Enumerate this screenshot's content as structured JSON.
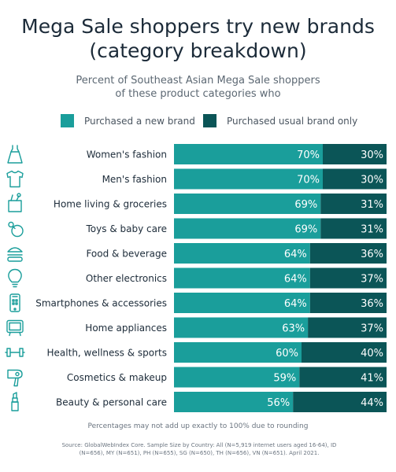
{
  "title_line1": "Mega Sale shoppers try new brands",
  "title_line2": "(category breakdown)",
  "subtitle_line1": "Percent of Southeast Asian Mega Sale shoppers",
  "subtitle_line2": "of these product categories who",
  "colors": {
    "new_brand": "#1a9e9b",
    "usual_brand": "#0b5557",
    "text": "#1c2b39",
    "icon": "#1a9e9b"
  },
  "chart_data": {
    "type": "bar",
    "orientation": "horizontal",
    "stacked": true,
    "categories": [
      "Women's fashion",
      "Men's fashion",
      "Home living & groceries",
      "Toys & baby care",
      "Food & beverage",
      "Other electronics",
      "Smartphones & accessories",
      "Home appliances",
      "Health, wellness & sports",
      "Cosmetics & makeup",
      "Beauty & personal care"
    ],
    "series": [
      {
        "name": "Purchased a new brand",
        "values": [
          70,
          70,
          69,
          69,
          64,
          64,
          64,
          63,
          60,
          59,
          56
        ]
      },
      {
        "name": "Purchased usual brand only",
        "values": [
          30,
          30,
          31,
          31,
          36,
          37,
          36,
          37,
          40,
          41,
          44
        ]
      }
    ],
    "value_suffix": "%",
    "xlim": [
      0,
      100
    ],
    "legend": "top",
    "grid": false
  },
  "category_icons": [
    "dress-icon",
    "shirt-icon",
    "grocery-bag-icon",
    "baby-pacifier-icon",
    "burger-icon",
    "lightbulb-icon",
    "smartphone-icon",
    "television-icon",
    "dumbbell-icon",
    "hair-dryer-icon",
    "lipstick-icon"
  ],
  "footnote": "Percentages may not add up exactly to 100% due to rounding",
  "source_line1": "Source: GlobalWebIndex Core. Sample Size by Country: All (N=5,919 internet users aged 16-64), ID",
  "source_line2": "(N=656), MY (N=651), PH (N=655), SG (N=650), TH (N=656), VN (N=651). April 2021."
}
